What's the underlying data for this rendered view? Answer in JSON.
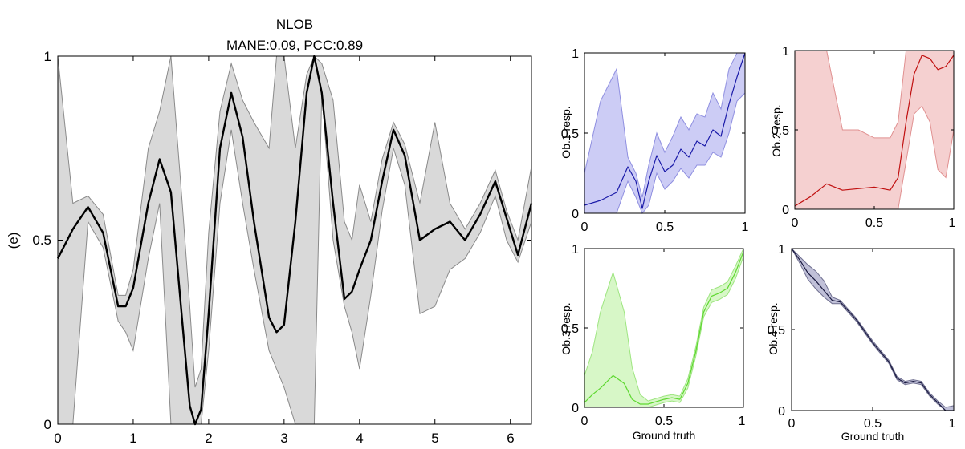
{
  "main_panel": {
    "title_line1": "NLOB",
    "title_line2": "MANE:0.09, PCC:0.89",
    "ylabel": "(e)",
    "xticks": [
      "0",
      "1",
      "2",
      "3",
      "4",
      "5",
      "6"
    ],
    "yticks": [
      "0",
      "0.5",
      "1"
    ]
  },
  "subplots": {
    "ob1": {
      "ylabel": "Ob.1 resp.",
      "xlabel": "",
      "xticks": [
        "0",
        "0.5",
        "1"
      ],
      "yticks": [
        "0",
        "0.5",
        "1"
      ]
    },
    "ob2": {
      "ylabel": "Ob.2 resp.",
      "xlabel": "",
      "xticks": [
        "0",
        "0.5",
        "1"
      ],
      "yticks": [
        "0",
        "0.5",
        "1"
      ]
    },
    "ob3": {
      "ylabel": "Ob.3 resp.",
      "xlabel": "Ground truth",
      "xticks": [
        "0",
        "0.5",
        "1"
      ],
      "yticks": [
        "0",
        "0.5",
        "1"
      ]
    },
    "ob4": {
      "ylabel": "Ob.4 resp.",
      "xlabel": "Ground truth",
      "xticks": [
        "0",
        "0.5",
        "1"
      ],
      "yticks": [
        "0",
        "0.5",
        "1"
      ]
    }
  },
  "chart_data": [
    {
      "type": "line",
      "title": "NLOB\nMANE:0.09, PCC:0.89",
      "xlabel": "",
      "ylabel": "(e)",
      "xlim": [
        0,
        6.28
      ],
      "ylim": [
        0,
        1
      ],
      "colors": {
        "line": "#000000",
        "band": "#d9d9d9",
        "band_edge": "#8a8a8a"
      },
      "series": [
        {
          "name": "mean",
          "x": [
            0,
            0.2,
            0.4,
            0.6,
            0.8,
            0.9,
            1.0,
            1.2,
            1.35,
            1.5,
            1.65,
            1.75,
            1.82,
            1.9,
            2.0,
            2.15,
            2.3,
            2.45,
            2.6,
            2.8,
            2.9,
            3.0,
            3.15,
            3.3,
            3.4,
            3.5,
            3.65,
            3.8,
            3.9,
            4.0,
            4.15,
            4.3,
            4.45,
            4.6,
            4.8,
            5.0,
            5.2,
            5.4,
            5.6,
            5.8,
            5.95,
            6.1,
            6.28
          ],
          "y": [
            0.45,
            0.53,
            0.59,
            0.52,
            0.32,
            0.32,
            0.37,
            0.6,
            0.72,
            0.63,
            0.28,
            0.05,
            0.0,
            0.04,
            0.3,
            0.75,
            0.9,
            0.78,
            0.55,
            0.29,
            0.25,
            0.27,
            0.55,
            0.9,
            1.0,
            0.9,
            0.6,
            0.34,
            0.36,
            0.42,
            0.5,
            0.66,
            0.8,
            0.73,
            0.5,
            0.53,
            0.55,
            0.5,
            0.57,
            0.66,
            0.56,
            0.46,
            0.6
          ]
        },
        {
          "name": "band-upper",
          "x": [
            0,
            0.2,
            0.4,
            0.6,
            0.8,
            0.9,
            1.0,
            1.2,
            1.35,
            1.5,
            1.65,
            1.75,
            1.82,
            1.9,
            2.0,
            2.15,
            2.3,
            2.45,
            2.6,
            2.8,
            2.9,
            3.0,
            3.15,
            3.3,
            3.4,
            3.5,
            3.65,
            3.8,
            3.9,
            4.0,
            4.15,
            4.3,
            4.45,
            4.6,
            4.8,
            5.0,
            5.2,
            5.4,
            5.6,
            5.8,
            5.95,
            6.1,
            6.28
          ],
          "y": [
            1.0,
            0.6,
            0.62,
            0.57,
            0.35,
            0.35,
            0.42,
            0.75,
            0.85,
            1.0,
            0.6,
            0.32,
            0.1,
            0.15,
            0.52,
            0.85,
            0.98,
            0.88,
            0.82,
            0.75,
            1.0,
            1.0,
            0.75,
            0.95,
            1.0,
            0.98,
            0.88,
            0.55,
            0.5,
            0.65,
            0.55,
            0.72,
            0.82,
            0.76,
            0.6,
            0.82,
            0.6,
            0.53,
            0.6,
            0.69,
            0.58,
            0.5,
            0.7
          ]
        },
        {
          "name": "band-lower",
          "x": [
            0,
            0.2,
            0.4,
            0.6,
            0.8,
            0.9,
            1.0,
            1.2,
            1.35,
            1.5,
            1.65,
            1.75,
            1.82,
            1.9,
            2.0,
            2.15,
            2.3,
            2.45,
            2.6,
            2.8,
            2.9,
            3.0,
            3.15,
            3.3,
            3.4,
            3.5,
            3.65,
            3.8,
            3.9,
            4.0,
            4.15,
            4.3,
            4.45,
            4.6,
            4.8,
            5.0,
            5.2,
            5.4,
            5.6,
            5.8,
            5.95,
            6.1,
            6.28
          ],
          "y": [
            0.0,
            0.0,
            0.55,
            0.48,
            0.28,
            0.25,
            0.2,
            0.45,
            0.6,
            0.0,
            0.0,
            0.0,
            0.0,
            0.0,
            0.2,
            0.6,
            0.8,
            0.6,
            0.42,
            0.2,
            0.15,
            0.1,
            0.0,
            0.0,
            0.0,
            0.9,
            0.5,
            0.32,
            0.25,
            0.15,
            0.35,
            0.58,
            0.75,
            0.65,
            0.3,
            0.32,
            0.42,
            0.45,
            0.52,
            0.62,
            0.5,
            0.44,
            0.55
          ]
        }
      ]
    },
    {
      "type": "line",
      "title": "",
      "xlabel": "",
      "ylabel": "Ob.1 resp.",
      "xlim": [
        0,
        1
      ],
      "ylim": [
        0,
        1
      ],
      "colors": {
        "line": "#1a1aa8",
        "band": "#ccccf5",
        "band_edge": "#8f8fe0"
      },
      "series": [
        {
          "name": "mean",
          "x": [
            0,
            0.1,
            0.2,
            0.27,
            0.32,
            0.36,
            0.4,
            0.45,
            0.5,
            0.55,
            0.6,
            0.65,
            0.7,
            0.75,
            0.8,
            0.85,
            0.9,
            0.95,
            1.0
          ],
          "y": [
            0.05,
            0.08,
            0.13,
            0.29,
            0.2,
            0.03,
            0.2,
            0.36,
            0.26,
            0.3,
            0.4,
            0.35,
            0.45,
            0.42,
            0.52,
            0.48,
            0.68,
            0.85,
            1.0
          ]
        },
        {
          "name": "band-upper",
          "x": [
            0,
            0.1,
            0.2,
            0.27,
            0.32,
            0.36,
            0.4,
            0.45,
            0.5,
            0.55,
            0.6,
            0.65,
            0.7,
            0.75,
            0.8,
            0.85,
            0.9,
            0.95,
            1.0
          ],
          "y": [
            0.25,
            0.7,
            0.9,
            0.35,
            0.25,
            0.1,
            0.3,
            0.5,
            0.38,
            0.48,
            0.6,
            0.52,
            0.62,
            0.6,
            0.75,
            0.65,
            0.9,
            1.0,
            1.0
          ]
        },
        {
          "name": "band-lower",
          "x": [
            0,
            0.1,
            0.2,
            0.27,
            0.32,
            0.36,
            0.4,
            0.45,
            0.5,
            0.55,
            0.6,
            0.65,
            0.7,
            0.75,
            0.8,
            0.85,
            0.9,
            0.95,
            1.0
          ],
          "y": [
            0.0,
            0.0,
            0.0,
            0.2,
            0.1,
            0.0,
            0.05,
            0.25,
            0.15,
            0.2,
            0.28,
            0.22,
            0.3,
            0.3,
            0.38,
            0.35,
            0.5,
            0.7,
            0.75
          ]
        }
      ]
    },
    {
      "type": "line",
      "title": "",
      "xlabel": "",
      "ylabel": "Ob.2 resp.",
      "xlim": [
        0,
        1
      ],
      "ylim": [
        0,
        1
      ],
      "colors": {
        "line": "#c01010",
        "band": "#f5d0d0",
        "band_edge": "#e09090"
      },
      "series": [
        {
          "name": "mean",
          "x": [
            0,
            0.1,
            0.2,
            0.3,
            0.4,
            0.5,
            0.6,
            0.65,
            0.7,
            0.75,
            0.8,
            0.85,
            0.9,
            0.95,
            1.0
          ],
          "y": [
            0.02,
            0.08,
            0.16,
            0.12,
            0.13,
            0.14,
            0.12,
            0.2,
            0.55,
            0.85,
            0.97,
            0.95,
            0.88,
            0.9,
            0.97
          ]
        },
        {
          "name": "band-upper",
          "x": [
            0,
            0.1,
            0.2,
            0.3,
            0.4,
            0.5,
            0.6,
            0.65,
            0.7,
            0.75,
            0.8,
            0.85,
            0.9,
            0.95,
            1.0
          ],
          "y": [
            1.0,
            1.0,
            1.0,
            0.5,
            0.5,
            0.45,
            0.45,
            0.55,
            1.0,
            1.0,
            1.0,
            1.0,
            1.0,
            1.0,
            1.0
          ]
        },
        {
          "name": "band-lower",
          "x": [
            0,
            0.1,
            0.2,
            0.3,
            0.4,
            0.5,
            0.6,
            0.65,
            0.7,
            0.75,
            0.8,
            0.85,
            0.9,
            0.95,
            1.0
          ],
          "y": [
            0.0,
            0.0,
            0.0,
            0.0,
            0.0,
            0.0,
            0.0,
            0.0,
            0.3,
            0.6,
            0.65,
            0.55,
            0.25,
            0.2,
            0.5
          ]
        }
      ]
    },
    {
      "type": "line",
      "title": "",
      "xlabel": "Ground truth",
      "ylabel": "Ob.3 resp.",
      "xlim": [
        0,
        1
      ],
      "ylim": [
        0,
        1
      ],
      "colors": {
        "line": "#5ed830",
        "band": "#d7f7c7",
        "band_edge": "#9ee580"
      },
      "series": [
        {
          "name": "mean",
          "x": [
            0,
            0.05,
            0.1,
            0.18,
            0.25,
            0.3,
            0.35,
            0.4,
            0.5,
            0.55,
            0.6,
            0.65,
            0.7,
            0.75,
            0.8,
            0.85,
            0.9,
            0.95,
            1.0
          ],
          "y": [
            0.03,
            0.08,
            0.12,
            0.2,
            0.15,
            0.05,
            0.02,
            0.02,
            0.05,
            0.06,
            0.05,
            0.15,
            0.35,
            0.6,
            0.7,
            0.72,
            0.75,
            0.85,
            0.98
          ]
        },
        {
          "name": "band-upper",
          "x": [
            0,
            0.05,
            0.1,
            0.18,
            0.25,
            0.3,
            0.35,
            0.4,
            0.5,
            0.55,
            0.6,
            0.65,
            0.7,
            0.75,
            0.8,
            0.85,
            0.9,
            0.95,
            1.0
          ],
          "y": [
            0.2,
            0.35,
            0.6,
            0.85,
            0.6,
            0.25,
            0.08,
            0.04,
            0.07,
            0.08,
            0.07,
            0.18,
            0.38,
            0.63,
            0.74,
            0.76,
            0.79,
            0.89,
            1.0
          ]
        },
        {
          "name": "band-lower",
          "x": [
            0,
            0.05,
            0.1,
            0.18,
            0.25,
            0.3,
            0.35,
            0.4,
            0.5,
            0.55,
            0.6,
            0.65,
            0.7,
            0.75,
            0.8,
            0.85,
            0.9,
            0.95,
            1.0
          ],
          "y": [
            0.0,
            0.0,
            0.0,
            0.0,
            0.0,
            0.0,
            0.0,
            0.0,
            0.03,
            0.04,
            0.03,
            0.12,
            0.32,
            0.57,
            0.66,
            0.68,
            0.71,
            0.81,
            0.95
          ]
        }
      ]
    },
    {
      "type": "line",
      "title": "",
      "xlabel": "Ground truth",
      "ylabel": "Ob.4 resp.",
      "xlim": [
        0,
        1
      ],
      "ylim": [
        0,
        1
      ],
      "colors": {
        "line": "#1a1a40",
        "band": "#c0c0d8",
        "band_edge": "#707090"
      },
      "series": [
        {
          "name": "mean",
          "x": [
            0,
            0.05,
            0.1,
            0.15,
            0.2,
            0.25,
            0.3,
            0.4,
            0.5,
            0.6,
            0.65,
            0.7,
            0.75,
            0.8,
            0.85,
            0.9,
            0.95,
            1.0
          ],
          "y": [
            1.0,
            0.93,
            0.85,
            0.8,
            0.74,
            0.68,
            0.67,
            0.56,
            0.42,
            0.3,
            0.2,
            0.17,
            0.18,
            0.17,
            0.1,
            0.05,
            0.0,
            0.0
          ]
        },
        {
          "name": "band-upper",
          "x": [
            0,
            0.05,
            0.1,
            0.15,
            0.2,
            0.25,
            0.3,
            0.4,
            0.5,
            0.6,
            0.65,
            0.7,
            0.75,
            0.8,
            0.85,
            0.9,
            0.95,
            1.0
          ],
          "y": [
            1.0,
            0.95,
            0.9,
            0.86,
            0.8,
            0.7,
            0.68,
            0.57,
            0.43,
            0.31,
            0.21,
            0.18,
            0.19,
            0.18,
            0.11,
            0.06,
            0.02,
            0.03
          ]
        },
        {
          "name": "band-lower",
          "x": [
            0,
            0.05,
            0.1,
            0.15,
            0.2,
            0.25,
            0.3,
            0.4,
            0.5,
            0.6,
            0.65,
            0.7,
            0.75,
            0.8,
            0.85,
            0.9,
            0.95,
            1.0
          ],
          "y": [
            1.0,
            0.91,
            0.81,
            0.75,
            0.7,
            0.66,
            0.66,
            0.55,
            0.41,
            0.29,
            0.19,
            0.16,
            0.17,
            0.16,
            0.09,
            0.04,
            0.0,
            0.0
          ]
        }
      ]
    }
  ]
}
